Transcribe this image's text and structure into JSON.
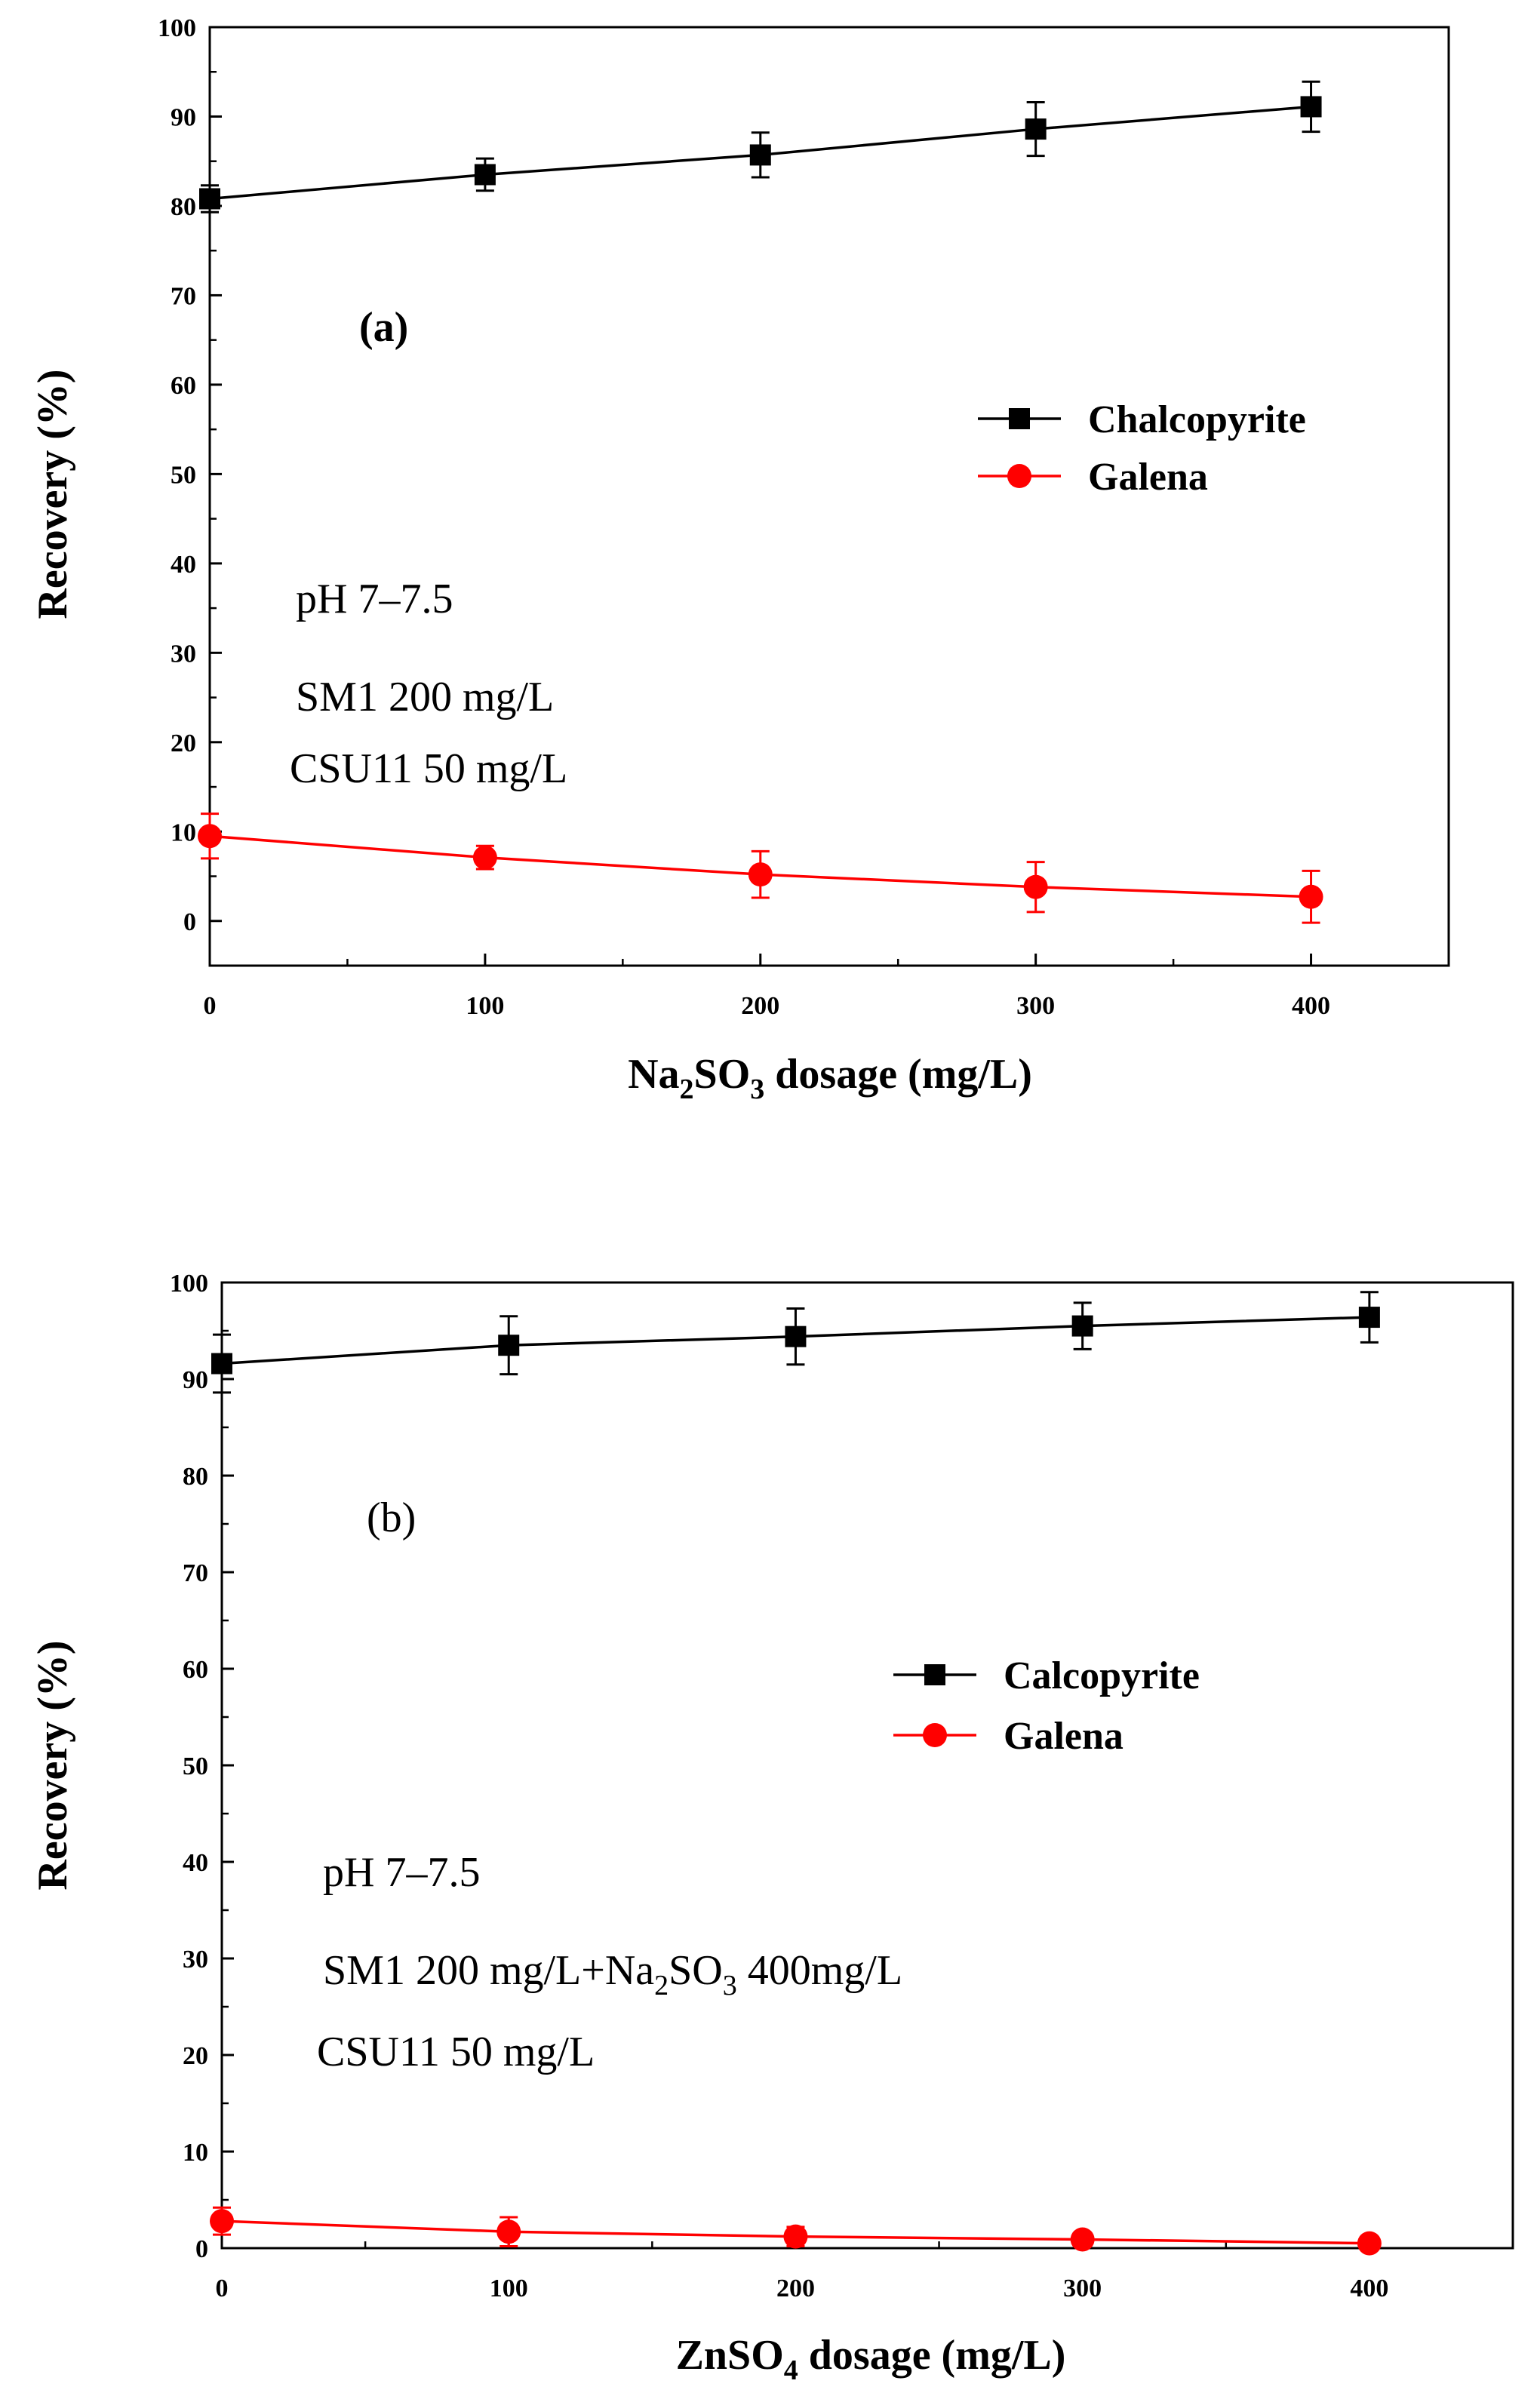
{
  "chart_data": [
    {
      "type": "line",
      "panel_label": "(a)",
      "panel_label_bold": true,
      "x": [
        0,
        100,
        200,
        300,
        400
      ],
      "xlim": [
        0,
        450
      ],
      "ylim": [
        -5,
        100
      ],
      "xticks": [
        0,
        100,
        200,
        300,
        400
      ],
      "yticks": [
        0,
        10,
        20,
        30,
        40,
        50,
        60,
        70,
        80,
        90,
        100
      ],
      "xlabel": {
        "pre": "Na",
        "sub1": "2",
        "mid": "SO",
        "sub2": "3",
        "post": " dosage (mg/L)"
      },
      "ylabel": "Recovery (%)",
      "series": [
        {
          "name": "Chalcopyrite",
          "marker": "square",
          "color": "#000000",
          "values": [
            80.8,
            83.5,
            85.7,
            88.6,
            91.1
          ],
          "errors": [
            1.5,
            1.8,
            2.5,
            3.0,
            2.8
          ]
        },
        {
          "name": "Galena",
          "marker": "circle",
          "color": "#ff0000",
          "values": [
            9.5,
            7.1,
            5.2,
            3.8,
            2.7
          ],
          "errors": [
            2.5,
            1.3,
            2.6,
            2.8,
            2.9
          ]
        }
      ],
      "annotations": [
        {
          "text": "pH 7–7.5"
        },
        {
          "text": "SM1 200 mg/L"
        },
        {
          "text": "CSU11 50 mg/L"
        }
      ]
    },
    {
      "type": "line",
      "panel_label": "(b)",
      "panel_label_bold": false,
      "x": [
        0,
        100,
        200,
        300,
        400
      ],
      "xlim": [
        0,
        450
      ],
      "ylim": [
        0,
        100
      ],
      "xticks": [
        0,
        100,
        200,
        300,
        400
      ],
      "yticks": [
        0,
        10,
        20,
        30,
        40,
        50,
        60,
        70,
        80,
        90,
        100
      ],
      "xlabel": {
        "pre": "ZnSO",
        "sub1": "4",
        "mid": "",
        "sub2": "",
        "post": " dosage (mg/L)"
      },
      "ylabel": "Recovery (%)",
      "series": [
        {
          "name": "Calcopyrite",
          "marker": "square",
          "color": "#000000",
          "values": [
            91.6,
            93.5,
            94.4,
            95.5,
            96.4
          ],
          "errors": [
            3.0,
            3.0,
            2.9,
            2.4,
            2.6
          ]
        },
        {
          "name": "Galena",
          "marker": "circle",
          "color": "#ff0000",
          "values": [
            2.8,
            1.7,
            1.2,
            0.9,
            0.5
          ],
          "errors": [
            1.4,
            1.5,
            1.0,
            0.6,
            0.4
          ]
        }
      ],
      "annotations": [
        {
          "text": "pH 7–7.5"
        },
        {
          "text": "SM1 200 mg/L+Na",
          "sub1": "2",
          "mid": "SO",
          "sub2": "3",
          "post": " 400mg/L"
        },
        {
          "text": "CSU11 50 mg/L"
        }
      ]
    }
  ]
}
